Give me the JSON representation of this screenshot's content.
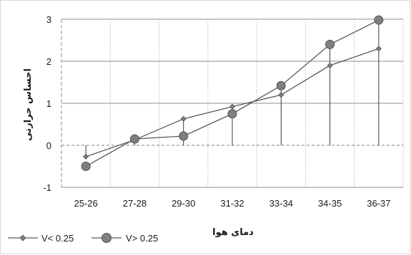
{
  "chart_data": {
    "type": "line",
    "categories": [
      "25-26",
      "27-28",
      "29-30",
      "31-32",
      "33-34",
      "34-35",
      "36-37"
    ],
    "yticks": [
      "-1",
      "0",
      "1",
      "2",
      "3"
    ],
    "ylim": [
      -1,
      3
    ],
    "xlabel": "دمای هوا",
    "ylabel": "احساس حرارتی",
    "grid": true,
    "legend_position": "bottom-left",
    "series": [
      {
        "name": "V< 0.25",
        "marker": "diamond",
        "color": "#595959",
        "values": [
          -0.27,
          0.13,
          0.63,
          0.92,
          1.2,
          1.9,
          2.3
        ]
      },
      {
        "name": "V> 0.25",
        "marker": "circle",
        "color": "#595959",
        "values": [
          -0.5,
          0.15,
          0.22,
          0.75,
          1.42,
          2.4,
          2.98
        ]
      }
    ]
  }
}
